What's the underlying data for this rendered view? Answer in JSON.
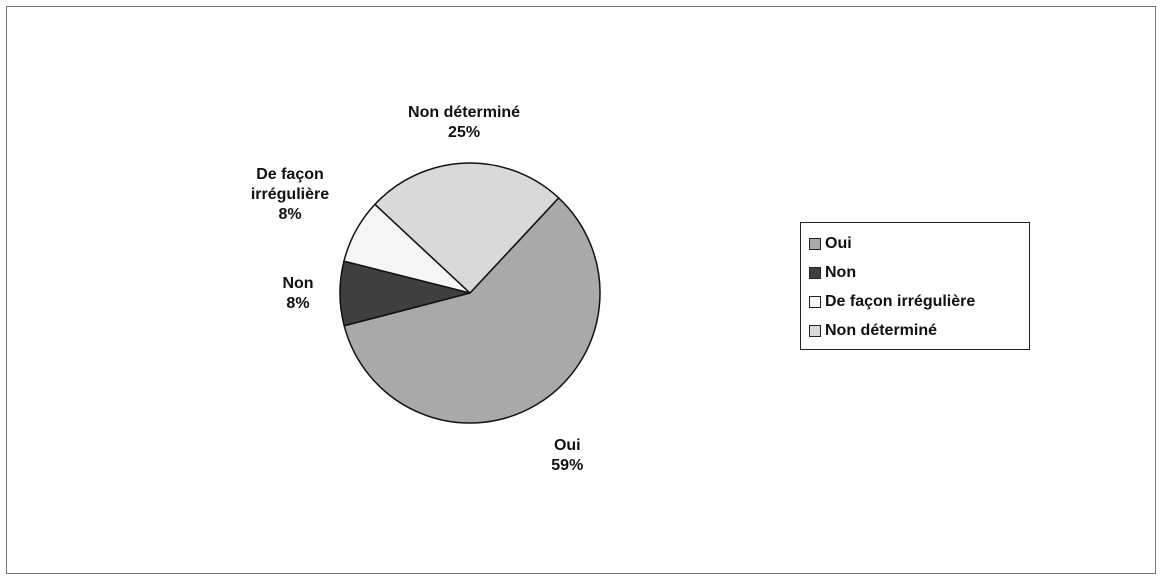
{
  "chart_data": {
    "type": "pie",
    "categories": [
      "Oui",
      "Non",
      "De façon irrégulière",
      "Non déterminé"
    ],
    "values": [
      59,
      8,
      8,
      25
    ],
    "value_labels": [
      "59%",
      "8%",
      "8%",
      "25%"
    ],
    "colors": [
      "#a9a9a9",
      "#3f3f3f",
      "#f6f6f6",
      "#d9d9d9"
    ],
    "legend": "right"
  }
}
